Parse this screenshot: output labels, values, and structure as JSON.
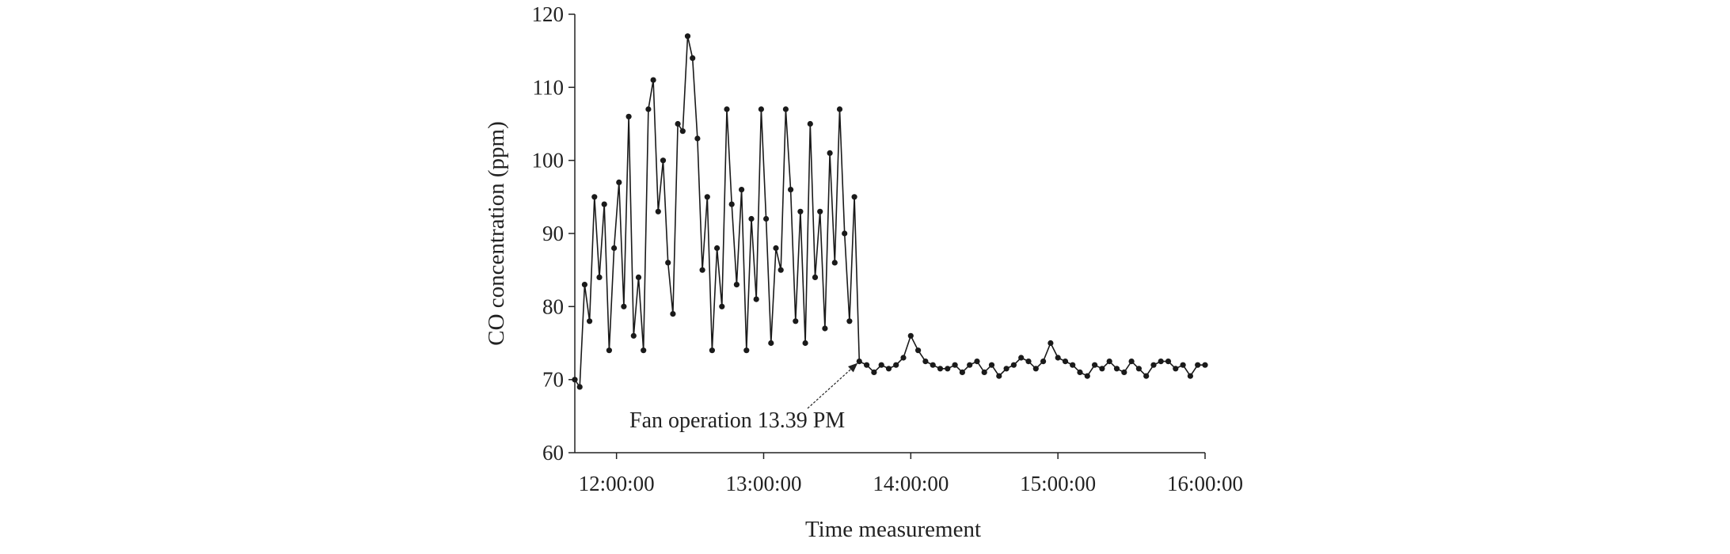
{
  "chart_data": {
    "type": "line",
    "title": "",
    "xlabel": "Time measurement",
    "ylabel": "CO concentration (ppm)",
    "ylim": [
      60,
      120
    ],
    "yticks": [
      60,
      70,
      80,
      90,
      100,
      110,
      120
    ],
    "xlim": [
      "11:43:00",
      "16:00:00"
    ],
    "xticks": [
      "12:00:00",
      "13:00:00",
      "14:00:00",
      "15:00:00",
      "16:00:00"
    ],
    "grid": false,
    "legend": "none",
    "annotation": {
      "text": "Fan operation 13.39 PM",
      "at_time": "13:39:00",
      "at_value": 72.5
    },
    "colors": {
      "series": "#1a1a1a",
      "axis": "#222222"
    },
    "series": [
      {
        "marker": "circle",
        "x": [
          "11:43",
          "11:45",
          "11:47",
          "11:49",
          "11:51",
          "11:53",
          "11:55",
          "11:57",
          "11:59",
          "12:01",
          "12:03",
          "12:05",
          "12:07",
          "12:09",
          "12:11",
          "12:13",
          "12:15",
          "12:17",
          "12:19",
          "12:21",
          "12:23",
          "12:25",
          "12:27",
          "12:29",
          "12:31",
          "12:33",
          "12:35",
          "12:37",
          "12:39",
          "12:41",
          "12:43",
          "12:45",
          "12:47",
          "12:49",
          "12:51",
          "12:53",
          "12:55",
          "12:57",
          "12:59",
          "13:01",
          "13:03",
          "13:05",
          "13:07",
          "13:09",
          "13:11",
          "13:13",
          "13:15",
          "13:17",
          "13:19",
          "13:21",
          "13:23",
          "13:25",
          "13:27",
          "13:29",
          "13:31",
          "13:33",
          "13:35",
          "13:37",
          "13:39",
          "13:42",
          "13:45",
          "13:48",
          "13:51",
          "13:54",
          "13:57",
          "14:00",
          "14:03",
          "14:06",
          "14:09",
          "14:12",
          "14:15",
          "14:18",
          "14:21",
          "14:24",
          "14:27",
          "14:30",
          "14:33",
          "14:36",
          "14:39",
          "14:42",
          "14:45",
          "14:48",
          "14:51",
          "14:54",
          "14:57",
          "15:00",
          "15:03",
          "15:06",
          "15:09",
          "15:12",
          "15:15",
          "15:18",
          "15:21",
          "15:24",
          "15:27",
          "15:30",
          "15:33",
          "15:36",
          "15:39",
          "15:42",
          "15:45",
          "15:48",
          "15:51",
          "15:54",
          "15:57",
          "16:00"
        ],
        "values": [
          70,
          69,
          83,
          78,
          95,
          84,
          94,
          74,
          88,
          97,
          80,
          106,
          76,
          84,
          74,
          107,
          111,
          93,
          100,
          86,
          79,
          105,
          104,
          117,
          114,
          103,
          85,
          95,
          74,
          88,
          80,
          107,
          94,
          83,
          96,
          74,
          92,
          81,
          107,
          92,
          75,
          88,
          85,
          107,
          96,
          78,
          93,
          75,
          105,
          84,
          93,
          77,
          101,
          86,
          107,
          90,
          78,
          95,
          72.5,
          72,
          71,
          72,
          71.5,
          72,
          73,
          76,
          74,
          72.5,
          72,
          71.5,
          71.5,
          72,
          71,
          72,
          72.5,
          71,
          72,
          70.5,
          71.5,
          72,
          73,
          72.5,
          71.5,
          72.5,
          75,
          73,
          72.5,
          72,
          71,
          70.5,
          72,
          71.5,
          72.5,
          71.5,
          71,
          72.5,
          71.5,
          70.5,
          72,
          72.5,
          72.5,
          71.5,
          72,
          70.5,
          72,
          72
        ]
      }
    ]
  }
}
